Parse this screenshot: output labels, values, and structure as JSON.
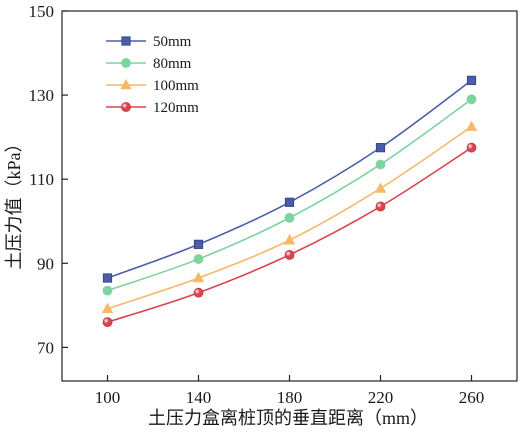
{
  "chart_data": {
    "type": "line",
    "title": "",
    "xlabel": "土压力盒离桩顶的垂直距离（mm）",
    "ylabel": "土压力值（kPa）",
    "x": [
      100,
      140,
      180,
      220,
      260
    ],
    "xticks": [
      100,
      140,
      180,
      220,
      260
    ],
    "yticks": [
      70,
      90,
      110,
      130,
      150
    ],
    "xlim": [
      80,
      280
    ],
    "ylim": [
      62,
      150
    ],
    "grid": false,
    "legend_position": "top-left",
    "series": [
      {
        "name": "50mm",
        "values": [
          86.5,
          94.5,
          104.5,
          117.5,
          133.5
        ],
        "color": "#4a5ea8",
        "marker": "square"
      },
      {
        "name": "80mm",
        "values": [
          83.5,
          91.0,
          100.8,
          113.5,
          129.0
        ],
        "color": "#7fd3a0",
        "marker": "circle"
      },
      {
        "name": "100mm",
        "values": [
          79.2,
          86.5,
          95.5,
          107.8,
          122.5
        ],
        "color": "#f6b96a",
        "marker": "triangle"
      },
      {
        "name": "120mm",
        "values": [
          76.0,
          83.0,
          92.0,
          103.5,
          117.5
        ],
        "color": "#d9454f",
        "marker": "sphere"
      }
    ]
  }
}
